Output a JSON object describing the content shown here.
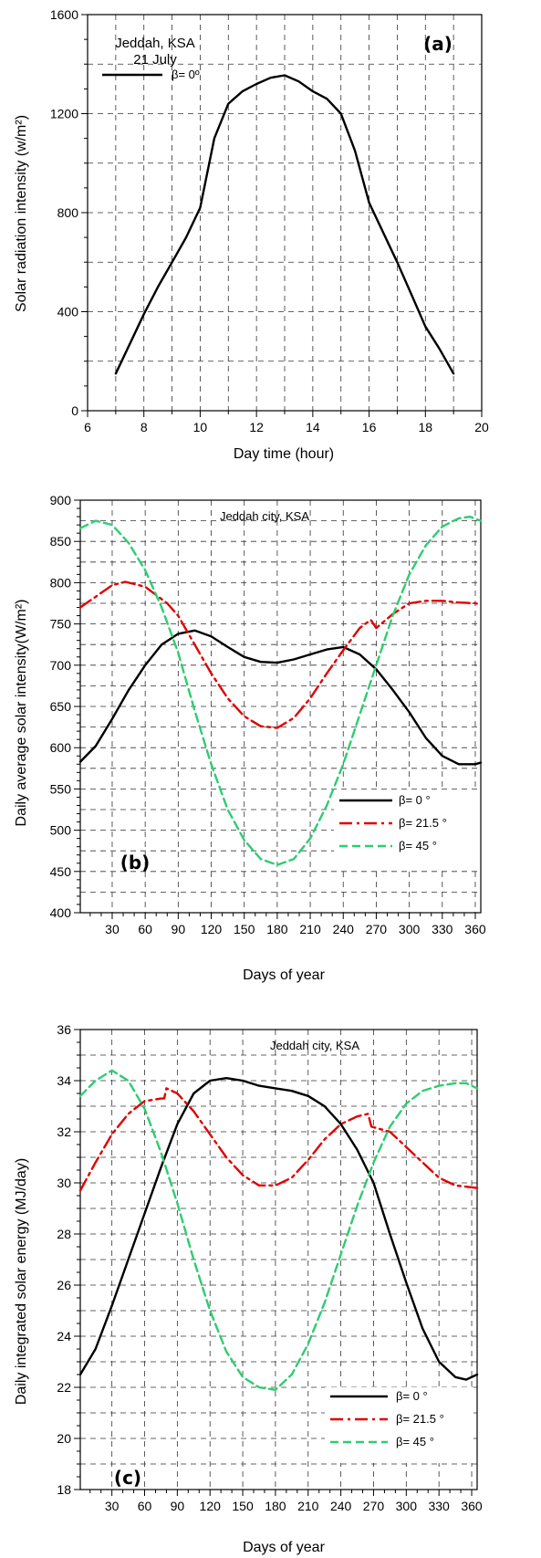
{
  "charts": [
    {
      "tag": "(a)",
      "note_lines": [
        "Jeddah, KSA",
        "21 July"
      ],
      "xlabel": "Day time (hour)",
      "ylabel": "Solar radiation intensity (w/m²)",
      "xticks": [
        "6",
        "8",
        "10",
        "12",
        "14",
        "16",
        "18",
        "20"
      ],
      "yticks": [
        "0",
        "400",
        "800",
        "1200",
        "1600"
      ]
    },
    {
      "tag": "(b)",
      "note_lines": [
        "Jeddah city, KSA"
      ],
      "xlabel": "Days of year",
      "ylabel": "Daily average solar intensity(W/m²)",
      "xticks": [
        "30",
        "60",
        "90",
        "120",
        "150",
        "180",
        "210",
        "240",
        "270",
        "300",
        "330",
        "360"
      ],
      "yticks": [
        "400",
        "450",
        "500",
        "550",
        "600",
        "650",
        "700",
        "750",
        "800",
        "850",
        "900"
      ]
    },
    {
      "tag": "(c)",
      "note_lines": [
        "Jeddah city, KSA"
      ],
      "xlabel": "Days of year",
      "ylabel": "Daily integrated solar energy (MJ/day)",
      "xticks": [
        "30",
        "60",
        "90",
        "120",
        "150",
        "180",
        "210",
        "240",
        "270",
        "300",
        "330",
        "360"
      ],
      "yticks": [
        "18",
        "20",
        "22",
        "24",
        "26",
        "28",
        "30",
        "32",
        "34",
        "36"
      ]
    }
  ],
  "chart_data": [
    {
      "type": "line",
      "xlabel": "Day time (hour)",
      "ylabel": "Solar radiation intensity (w/m²)",
      "xlim": [
        6,
        20
      ],
      "ylim": [
        0,
        1600
      ],
      "grid": true,
      "legend_position": "top-left",
      "series": [
        {
          "name": "β= 0º",
          "color": "#000000",
          "dash": "solid",
          "x": [
            7,
            7.5,
            8,
            8.5,
            9,
            9.5,
            10,
            10.5,
            11,
            11.5,
            12,
            12.5,
            13,
            13.5,
            14,
            14.5,
            15,
            15.5,
            16,
            16.5,
            17,
            17.5,
            18,
            18.5,
            19
          ],
          "y": [
            150,
            270,
            390,
            500,
            600,
            700,
            820,
            1100,
            1240,
            1290,
            1320,
            1345,
            1355,
            1330,
            1290,
            1260,
            1200,
            1050,
            840,
            720,
            600,
            470,
            340,
            250,
            150
          ]
        }
      ]
    },
    {
      "type": "line",
      "xlabel": "Days of year",
      "ylabel": "Daily average solar intensity(W/m²)",
      "xlim": [
        1,
        365
      ],
      "ylim": [
        400,
        900
      ],
      "grid": true,
      "legend_position": "bottom-right",
      "series": [
        {
          "name": "β= 0 °",
          "color": "#000000",
          "dash": "solid",
          "x": [
            1,
            15,
            30,
            45,
            60,
            75,
            90,
            105,
            120,
            135,
            150,
            165,
            180,
            195,
            210,
            225,
            240,
            255,
            270,
            285,
            300,
            315,
            330,
            345,
            360,
            365
          ],
          "y": [
            583,
            602,
            635,
            670,
            700,
            725,
            738,
            742,
            735,
            722,
            710,
            704,
            703,
            707,
            713,
            719,
            722,
            713,
            695,
            670,
            643,
            612,
            590,
            580,
            580,
            582
          ]
        },
        {
          "name": "β= 21.5 °",
          "color": "#e00000",
          "dash": "dashdot",
          "x": [
            1,
            15,
            30,
            42,
            60,
            75,
            80,
            90,
            105,
            120,
            135,
            150,
            165,
            180,
            195,
            210,
            225,
            240,
            255,
            265,
            270,
            285,
            300,
            315,
            330,
            345,
            360,
            365
          ],
          "y": [
            770,
            783,
            797,
            801,
            795,
            780,
            775,
            760,
            725,
            690,
            660,
            638,
            626,
            624,
            636,
            660,
            690,
            718,
            745,
            755,
            745,
            762,
            775,
            778,
            778,
            776,
            775,
            774
          ]
        },
        {
          "name": "β= 45 °",
          "color": "#2ecc71",
          "dash": "dashed",
          "x": [
            1,
            15,
            30,
            45,
            60,
            75,
            90,
            105,
            120,
            135,
            150,
            165,
            180,
            195,
            210,
            225,
            240,
            255,
            270,
            285,
            300,
            315,
            330,
            345,
            355,
            365
          ],
          "y": [
            866,
            875,
            870,
            848,
            815,
            770,
            715,
            645,
            580,
            525,
            488,
            465,
            458,
            465,
            490,
            530,
            580,
            640,
            700,
            760,
            810,
            845,
            868,
            878,
            880,
            875
          ]
        }
      ]
    },
    {
      "type": "line",
      "xlabel": "Days of year",
      "ylabel": "Daily integrated solar energy (MJ/day)",
      "xlim": [
        1,
        365
      ],
      "ylim": [
        18,
        36
      ],
      "grid": true,
      "legend_position": "bottom-right",
      "series": [
        {
          "name": "β= 0 °",
          "color": "#000000",
          "dash": "solid",
          "x": [
            1,
            15,
            30,
            45,
            60,
            75,
            90,
            105,
            120,
            135,
            150,
            165,
            180,
            195,
            210,
            225,
            240,
            255,
            270,
            285,
            300,
            315,
            330,
            345,
            355,
            365
          ],
          "y": [
            22.5,
            23.5,
            25.2,
            27.0,
            28.8,
            30.6,
            32.3,
            33.5,
            34.0,
            34.1,
            34.0,
            33.8,
            33.7,
            33.6,
            33.4,
            33.0,
            32.3,
            31.3,
            30.0,
            28.0,
            26.1,
            24.3,
            23.0,
            22.4,
            22.3,
            22.5
          ]
        },
        {
          "name": "β= 21.5 °",
          "color": "#e00000",
          "dash": "dashdot",
          "x": [
            1,
            15,
            30,
            45,
            60,
            75,
            78,
            80,
            90,
            105,
            120,
            135,
            150,
            165,
            180,
            195,
            210,
            225,
            240,
            255,
            265,
            268,
            285,
            300,
            315,
            330,
            345,
            365
          ],
          "y": [
            29.7,
            30.8,
            31.9,
            32.7,
            33.2,
            33.3,
            33.3,
            33.7,
            33.5,
            32.8,
            31.9,
            31.0,
            30.3,
            29.9,
            29.9,
            30.2,
            30.9,
            31.7,
            32.3,
            32.6,
            32.7,
            32.2,
            32.0,
            31.4,
            30.8,
            30.2,
            29.9,
            29.8
          ]
        },
        {
          "name": "β= 45 °",
          "color": "#2ecc71",
          "dash": "dashed",
          "x": [
            1,
            15,
            30,
            45,
            60,
            75,
            90,
            105,
            120,
            135,
            150,
            165,
            180,
            195,
            210,
            225,
            240,
            255,
            270,
            285,
            300,
            315,
            330,
            345,
            355,
            365
          ],
          "y": [
            33.4,
            34.0,
            34.4,
            34.0,
            32.9,
            31.2,
            29.2,
            27.0,
            25.0,
            23.4,
            22.4,
            22.0,
            21.9,
            22.5,
            23.7,
            25.3,
            27.2,
            29.1,
            30.8,
            32.2,
            33.1,
            33.6,
            33.8,
            33.9,
            33.9,
            33.7
          ]
        }
      ]
    }
  ]
}
